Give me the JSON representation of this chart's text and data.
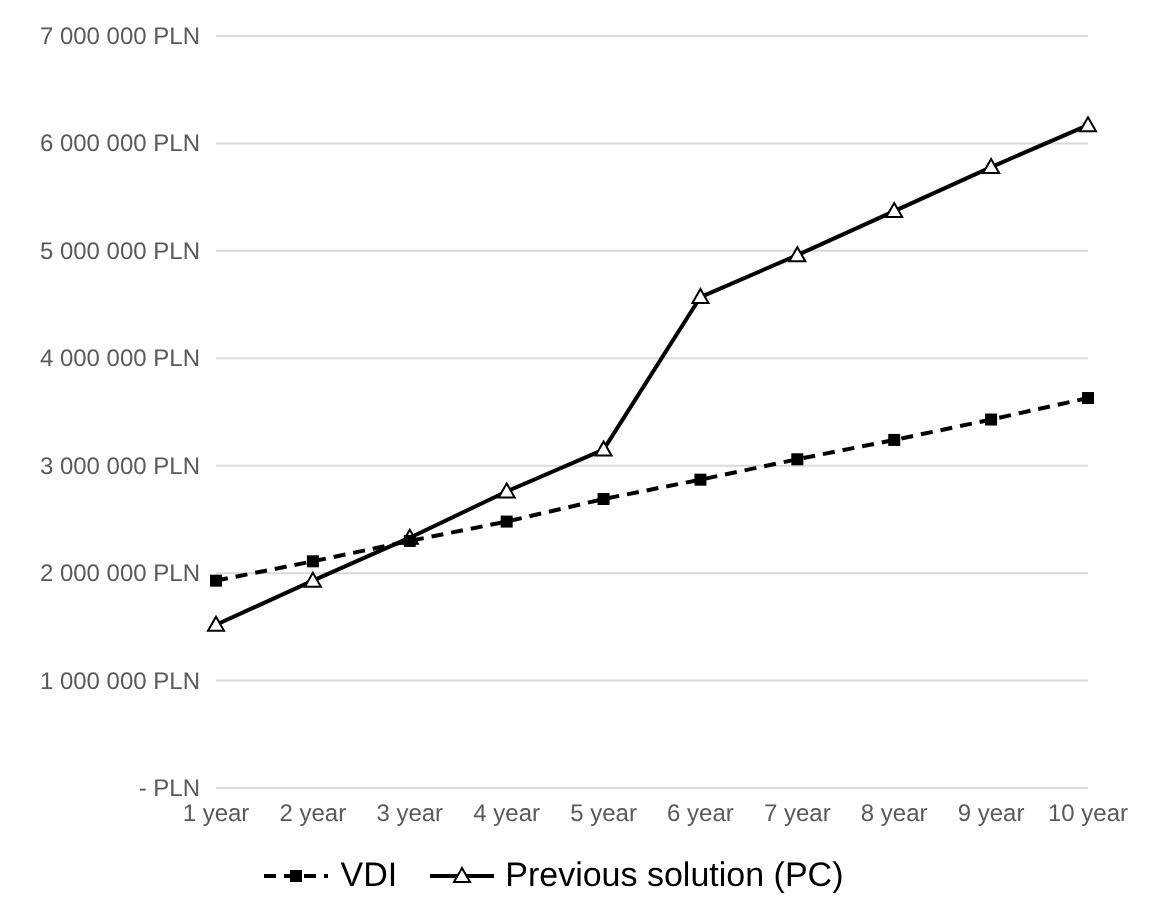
{
  "chart_data": {
    "type": "line",
    "categories": [
      "1 year",
      "2 year",
      "3 year",
      "4 year",
      "5 year",
      "6 year",
      "7 year",
      "8 year",
      "9 year",
      "10 year"
    ],
    "series": [
      {
        "name": "VDI",
        "color": "#000000",
        "marker": "square",
        "line_style": "dashed",
        "values": [
          1930000,
          2110000,
          2300000,
          2480000,
          2690000,
          2870000,
          3060000,
          3240000,
          3430000,
          3630000
        ]
      },
      {
        "name": "Previous solution (PC)",
        "color": "#000000",
        "marker": "triangle",
        "line_style": "solid",
        "values": [
          1520000,
          1930000,
          2330000,
          2760000,
          3150000,
          4570000,
          4960000,
          5370000,
          5780000,
          6170000
        ]
      }
    ],
    "ylim": [
      0,
      7000000
    ],
    "yticks": [
      {
        "value": 0,
        "label": "- PLN"
      },
      {
        "value": 1000000,
        "label": "1 000 000 PLN"
      },
      {
        "value": 2000000,
        "label": "2 000 000 PLN"
      },
      {
        "value": 3000000,
        "label": "3 000 000 PLN"
      },
      {
        "value": 4000000,
        "label": "4 000 000 PLN"
      },
      {
        "value": 5000000,
        "label": "5 000 000 PLN"
      },
      {
        "value": 6000000,
        "label": "6 000 000 PLN"
      },
      {
        "value": 7000000,
        "label": "7 000 000 PLN"
      }
    ],
    "grid": "y",
    "legend": "bottom"
  }
}
